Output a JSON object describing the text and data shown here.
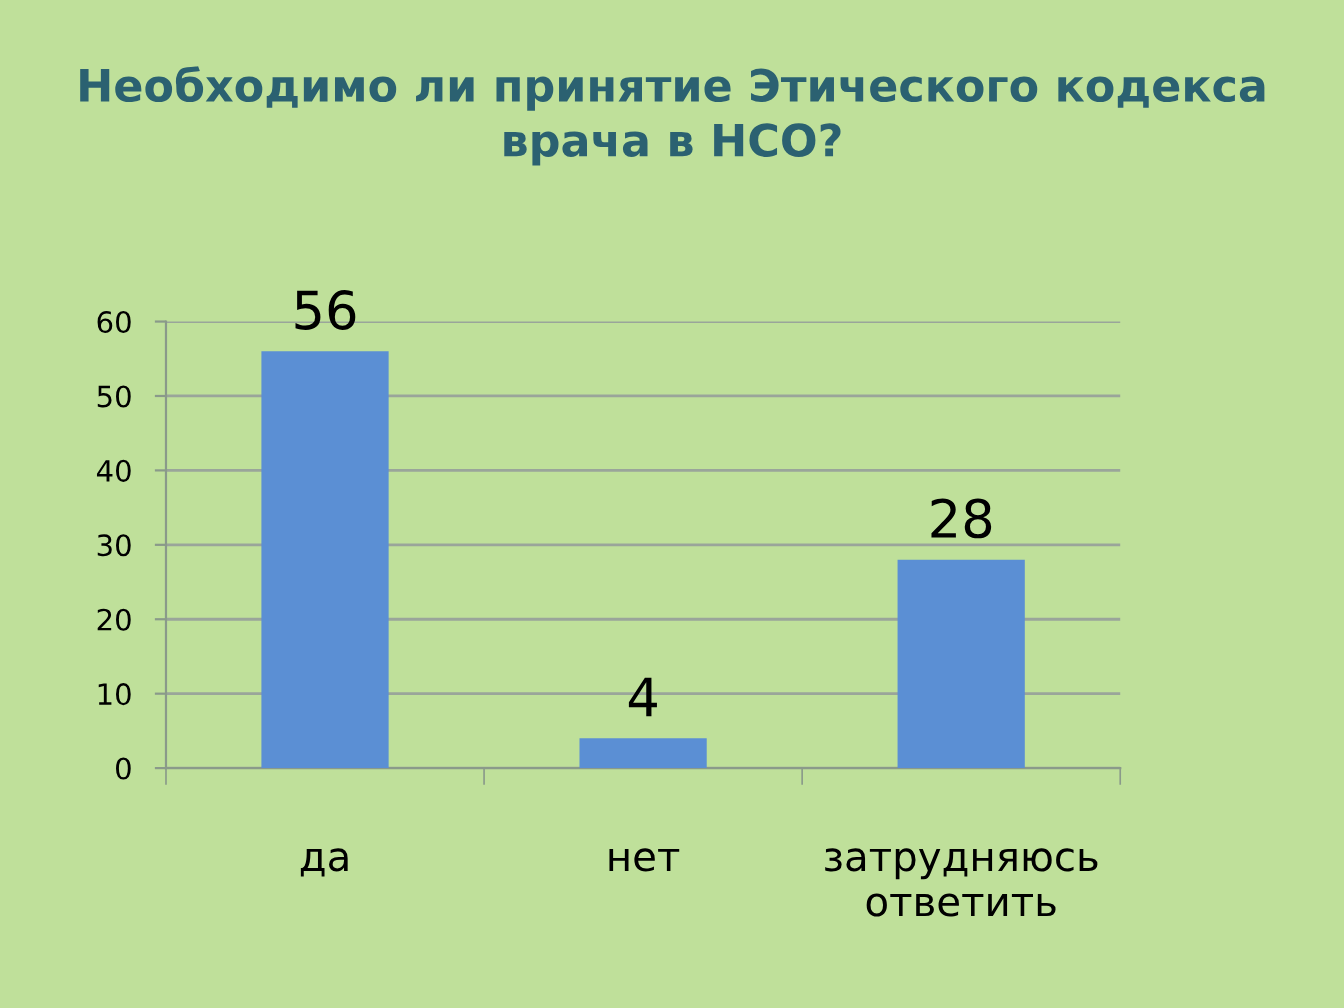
{
  "chart_data": {
    "type": "bar",
    "title": "Необходимо ли принятие Этического кодекса\nврача в НСО?",
    "categories": [
      "да",
      "нет",
      "затрудняюсь\nответить"
    ],
    "values": [
      56,
      4,
      28
    ],
    "color": "#5b8fd4",
    "ylim": [
      0,
      60
    ],
    "yticks": [
      0,
      10,
      20,
      30,
      40,
      50,
      60
    ],
    "grid": "y",
    "data_labels": true,
    "legend": false
  }
}
